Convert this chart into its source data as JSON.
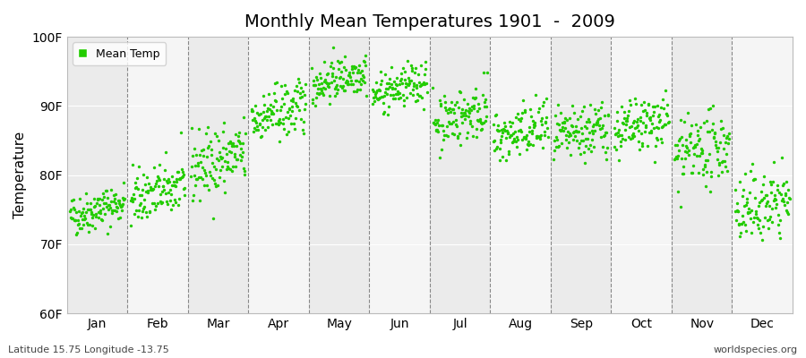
{
  "title": "Monthly Mean Temperatures 1901  -  2009",
  "ylabel": "Temperature",
  "footer_left": "Latitude 15.75 Longitude -13.75",
  "footer_right": "worldspecies.org",
  "legend_label": "Mean Temp",
  "dot_color": "#22CC00",
  "bg_color": "#EBEBEB",
  "alt_bg_color": "#F5F5F5",
  "ylim": [
    60,
    100
  ],
  "yticks": [
    60,
    70,
    80,
    90,
    100
  ],
  "ytick_labels": [
    "60F",
    "70F",
    "80F",
    "90F",
    "100F"
  ],
  "months": [
    "Jan",
    "Feb",
    "Mar",
    "Apr",
    "May",
    "Jun",
    "Jul",
    "Aug",
    "Sep",
    "Oct",
    "Nov",
    "Dec"
  ],
  "month_base_F": [
    74.0,
    76.5,
    81.0,
    88.0,
    93.0,
    91.5,
    87.5,
    85.0,
    85.0,
    86.0,
    82.5,
    74.5
  ],
  "month_trend_F": [
    0.02,
    0.02,
    0.02,
    0.02,
    0.02,
    0.02,
    0.02,
    0.02,
    0.02,
    0.02,
    0.02,
    0.02
  ],
  "month_stds_F": [
    1.5,
    2.0,
    2.5,
    2.0,
    1.5,
    1.5,
    2.0,
    2.0,
    2.0,
    2.0,
    2.5,
    2.5
  ],
  "n_years": 109,
  "start_year": 1901,
  "seed": 42
}
